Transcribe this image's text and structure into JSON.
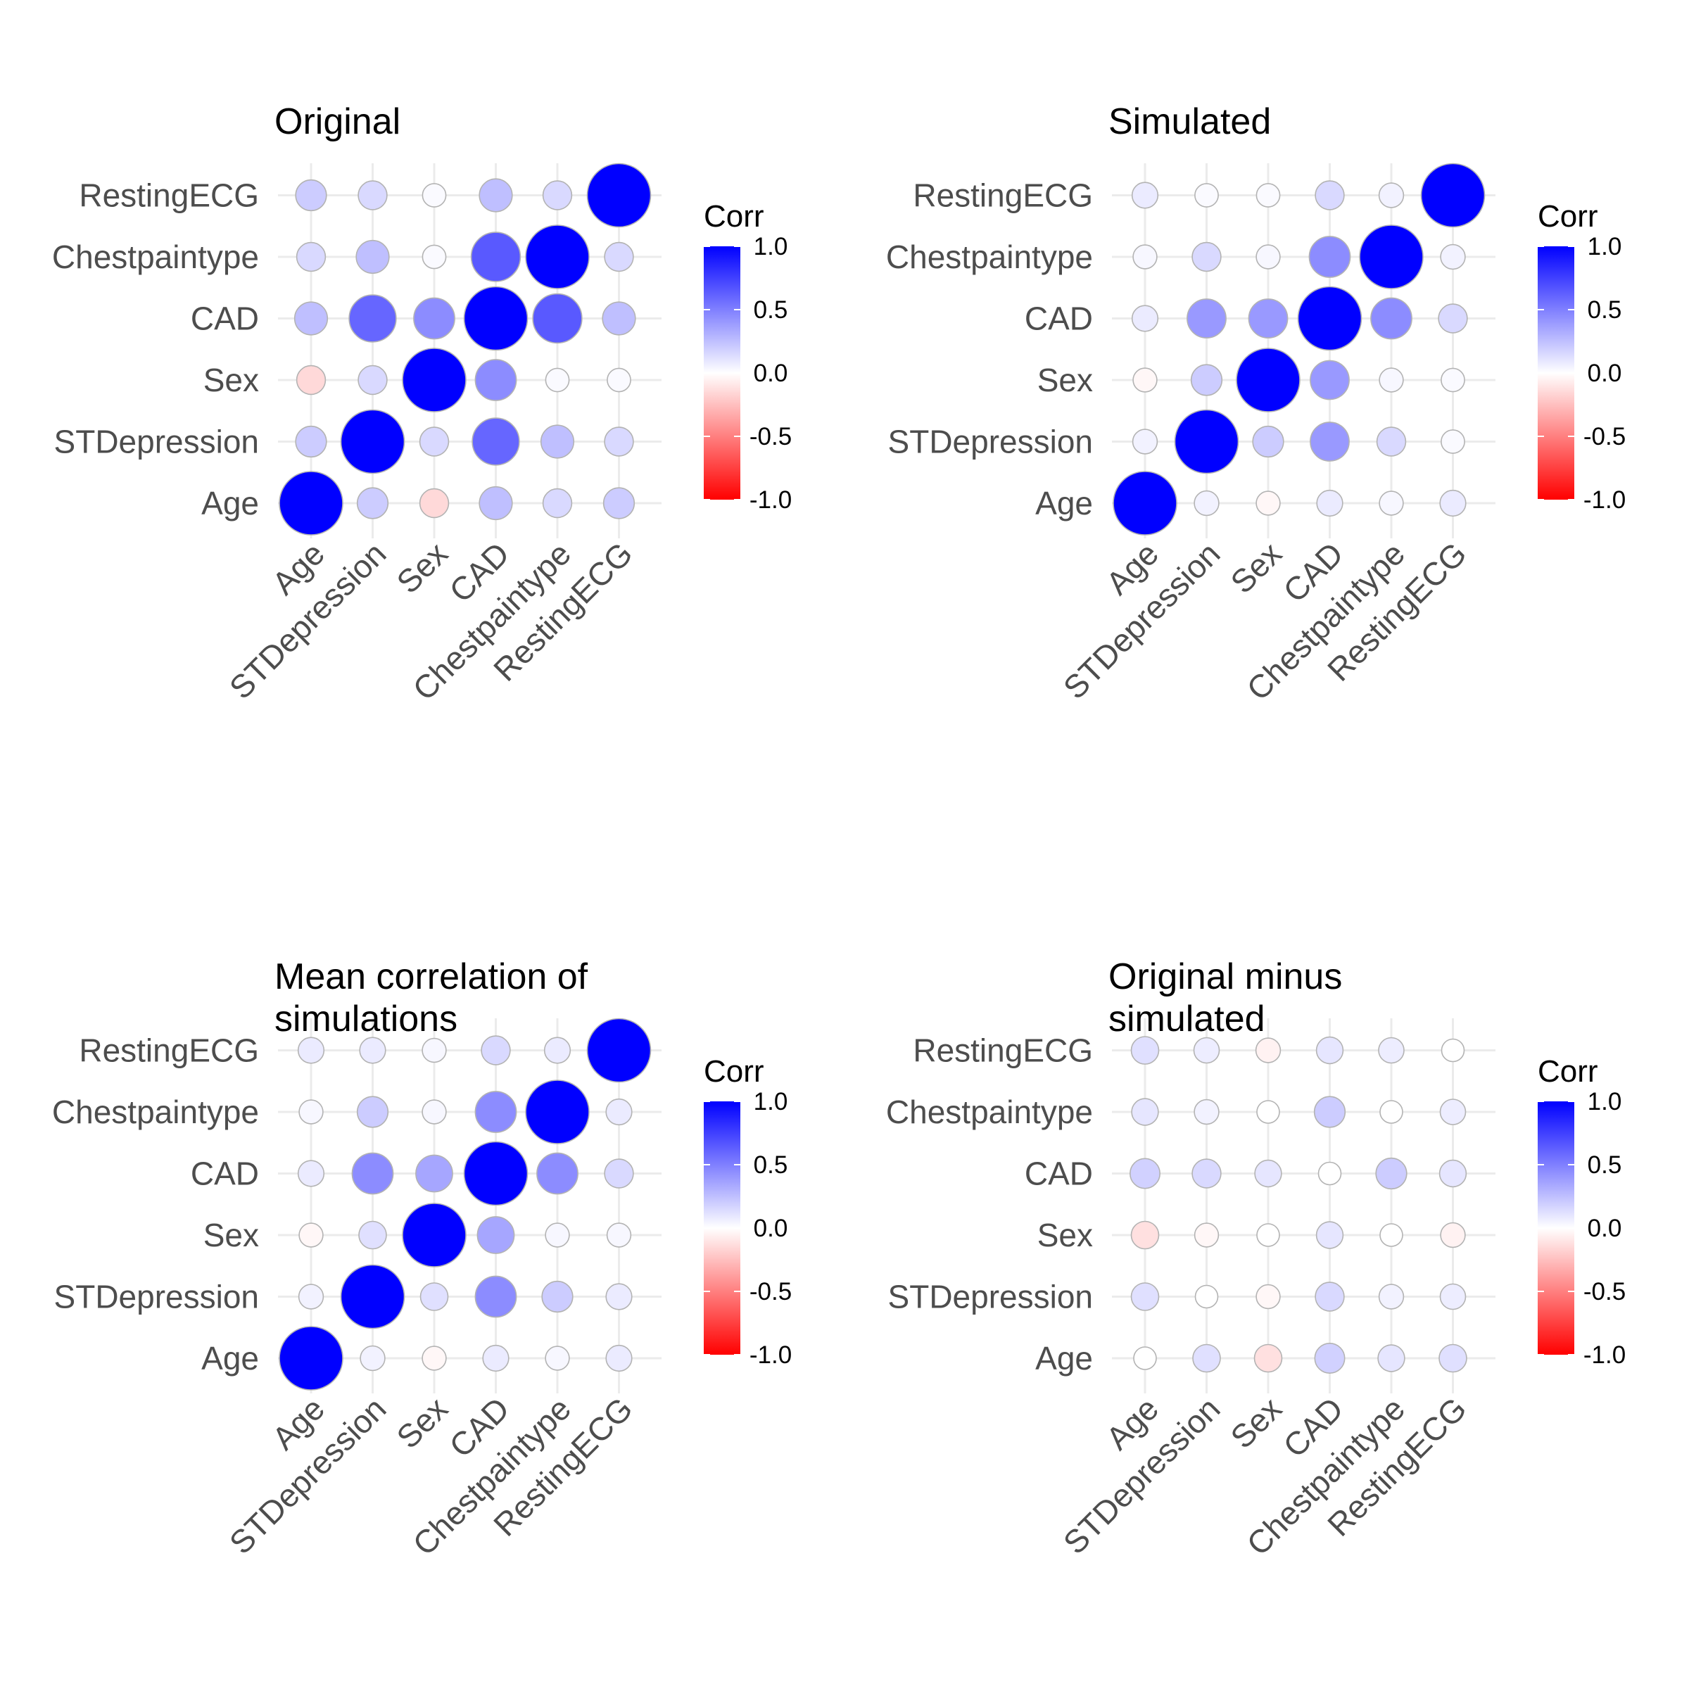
{
  "chart_data": [
    {
      "type": "scatter",
      "title_lines": [
        "Original"
      ],
      "variables": [
        "Age",
        "STDepression",
        "Sex",
        "CAD",
        "Chestpaintype",
        "RestingECG"
      ],
      "matrix": [
        [
          1.0,
          0.2,
          -0.15,
          0.25,
          0.15,
          0.2
        ],
        [
          0.2,
          1.0,
          0.15,
          0.6,
          0.25,
          0.15
        ],
        [
          -0.15,
          0.15,
          1.0,
          0.45,
          0.02,
          0.02
        ],
        [
          0.25,
          0.6,
          0.45,
          1.0,
          0.65,
          0.25
        ],
        [
          0.15,
          0.25,
          0.02,
          0.65,
          1.0,
          0.15
        ],
        [
          0.2,
          0.15,
          0.02,
          0.25,
          0.15,
          1.0
        ]
      ],
      "legend": {
        "title": "Corr",
        "ticks": [
          "1.0",
          "0.5",
          "0.0",
          "-0.5",
          "-1.0"
        ],
        "range": [
          -1,
          1
        ]
      }
    },
    {
      "type": "scatter",
      "title_lines": [
        "Simulated"
      ],
      "variables": [
        "Age",
        "STDepression",
        "Sex",
        "CAD",
        "Chestpaintype",
        "RestingECG"
      ],
      "matrix": [
        [
          1.0,
          0.05,
          -0.03,
          0.08,
          0.03,
          0.08
        ],
        [
          0.05,
          1.0,
          0.2,
          0.4,
          0.15,
          0.02
        ],
        [
          -0.03,
          0.2,
          1.0,
          0.4,
          0.03,
          0.02
        ],
        [
          0.08,
          0.4,
          0.4,
          1.0,
          0.45,
          0.15
        ],
        [
          0.03,
          0.15,
          0.03,
          0.45,
          1.0,
          0.05
        ],
        [
          0.08,
          0.02,
          0.02,
          0.15,
          0.05,
          1.0
        ]
      ],
      "legend": {
        "title": "Corr",
        "ticks": [
          "1.0",
          "0.5",
          "0.0",
          "-0.5",
          "-1.0"
        ],
        "range": [
          -1,
          1
        ]
      }
    },
    {
      "type": "scatter",
      "title_lines": [
        "Mean correlation of",
        "simulations"
      ],
      "variables": [
        "Age",
        "STDepression",
        "Sex",
        "CAD",
        "Chestpaintype",
        "RestingECG"
      ],
      "matrix": [
        [
          1.0,
          0.05,
          -0.03,
          0.08,
          0.03,
          0.08
        ],
        [
          0.05,
          1.0,
          0.12,
          0.45,
          0.2,
          0.08
        ],
        [
          -0.03,
          0.12,
          1.0,
          0.35,
          0.03,
          0.03
        ],
        [
          0.08,
          0.45,
          0.35,
          1.0,
          0.45,
          0.15
        ],
        [
          0.03,
          0.2,
          0.03,
          0.45,
          1.0,
          0.08
        ],
        [
          0.08,
          0.08,
          0.03,
          0.15,
          0.08,
          1.0
        ]
      ],
      "legend": {
        "title": "Corr",
        "ticks": [
          "1.0",
          "0.5",
          "0.0",
          "-0.5",
          "-1.0"
        ],
        "range": [
          -1,
          1
        ]
      }
    },
    {
      "type": "scatter",
      "title_lines": [
        "Original minus",
        "simulated"
      ],
      "variables": [
        "Age",
        "STDepression",
        "Sex",
        "CAD",
        "Chestpaintype",
        "RestingECG"
      ],
      "matrix": [
        [
          0.0,
          0.12,
          -0.12,
          0.18,
          0.1,
          0.12
        ],
        [
          0.12,
          0.0,
          -0.03,
          0.15,
          0.05,
          0.07
        ],
        [
          -0.12,
          -0.03,
          0.0,
          0.1,
          0.0,
          -0.05
        ],
        [
          0.18,
          0.15,
          0.1,
          0.0,
          0.2,
          0.1
        ],
        [
          0.1,
          0.05,
          0.0,
          0.2,
          0.0,
          0.07
        ],
        [
          0.12,
          0.07,
          -0.05,
          0.1,
          0.07,
          0.0
        ]
      ],
      "legend": {
        "title": "Corr",
        "ticks": [
          "1.0",
          "0.5",
          "0.0",
          "-0.5",
          "-1.0"
        ],
        "range": [
          -1,
          1
        ]
      }
    }
  ]
}
